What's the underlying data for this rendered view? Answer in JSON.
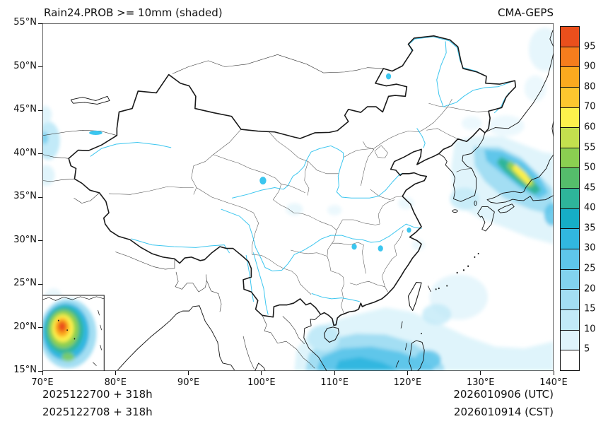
{
  "header": {
    "title": "Rain24.PROB >= 10mm (shaded)",
    "model": "CMA-GEPS"
  },
  "footer": {
    "left_line1": "2025122700 + 318h",
    "left_line2": "2025122708 + 318h",
    "right_line1": "2026010906 (UTC)",
    "right_line2": "2026010914 (CST)"
  },
  "axes": {
    "x_ticks": [
      "70°E",
      "80°E",
      "90°E",
      "100°E",
      "110°E",
      "120°E",
      "130°E",
      "140°E"
    ],
    "y_ticks": [
      "55°N",
      "50°N",
      "45°N",
      "40°N",
      "35°N",
      "30°N",
      "25°N",
      "20°N",
      "15°N"
    ],
    "x_range": [
      70,
      140
    ],
    "y_range": [
      15,
      55
    ]
  },
  "colorbar": {
    "labels": [
      "95",
      "90",
      "80",
      "70",
      "60",
      "55",
      "50",
      "45",
      "40",
      "35",
      "30",
      "25",
      "20",
      "15",
      "10",
      "5"
    ],
    "levels": [
      95,
      90,
      80,
      70,
      60,
      55,
      50,
      45,
      40,
      35,
      30,
      25,
      20,
      15,
      10,
      5
    ],
    "colors_top_to_bottom": [
      "#ea4f1c",
      "#f67d1d",
      "#fbaa1f",
      "#fdc72f",
      "#fdf14c",
      "#c3e04e",
      "#8bcf51",
      "#55bd6b",
      "#2eb59a",
      "#16aec6",
      "#31b7e0",
      "#5ec6ea",
      "#82d3ef",
      "#a3def3",
      "#c2eaf8",
      "#e0f4fb",
      "#ffffff"
    ]
  },
  "map": {
    "extent_lon": [
      70,
      140
    ],
    "extent_lat": [
      15,
      55
    ],
    "border_color": "#111111",
    "river_color": "#3cc6ef",
    "shaded_regions": [
      "light-to-yellow band over Sea of Japan / western Japan (35-40N, 131-138E)",
      "broad light blue over South China Sea and Philippine Sea (15-22N)",
      "small pale patches along western map edge (70-73E)",
      "pale patches near upper-right corner (Sakhalin area)"
    ],
    "inset": "South China Sea inset at lower-left with high-probability (red/orange core) area"
  }
}
